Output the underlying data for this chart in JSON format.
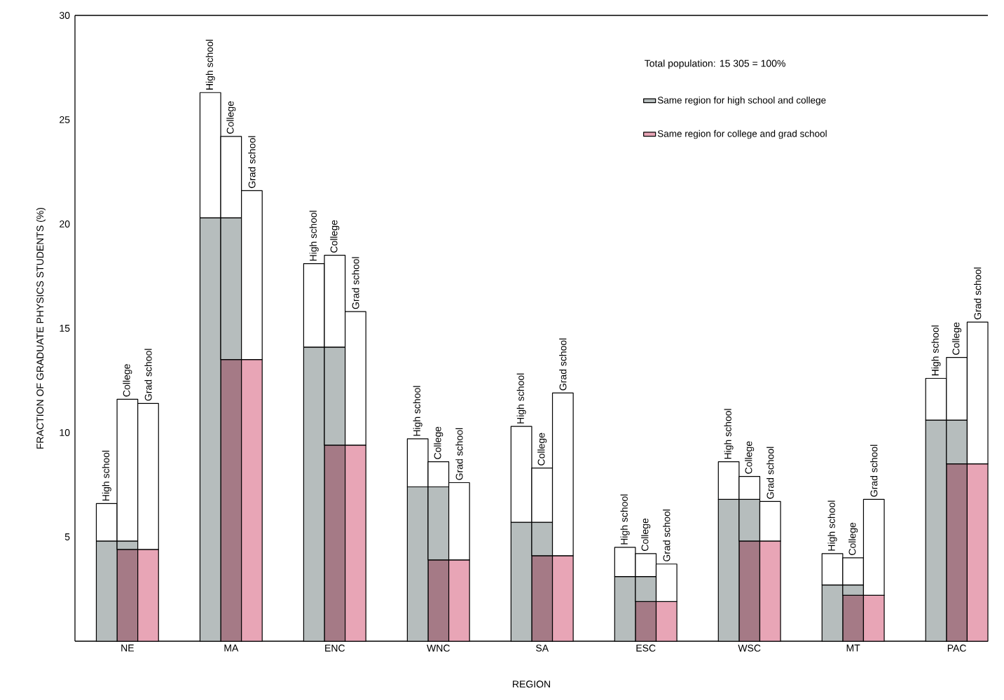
{
  "chart_data": {
    "type": "bar",
    "stacked": true,
    "categories": [
      null,
      "NE",
      null,
      null,
      "MA",
      null,
      null,
      "ENC",
      null,
      null,
      "WNC",
      null,
      null,
      "SA",
      null,
      null,
      "ESC",
      null,
      null,
      "WSC",
      null,
      null,
      "MT",
      null,
      null,
      "PAC",
      null
    ],
    "series": [
      {
        "color": "#a57a86",
        "values": [
          null,
          4.4,
          null,
          null,
          13.5,
          null,
          null,
          9.4,
          null,
          null,
          3.9,
          null,
          null,
          4.1,
          null,
          null,
          1.9,
          null,
          null,
          4.8,
          null,
          null,
          2.2,
          null,
          null,
          8.5,
          null
        ]
      },
      {
        "name": "Same region for high school and college",
        "color": "#b6bdbd",
        "values": [
          4.8,
          0.4,
          null,
          20.3,
          6.8,
          null,
          14.1,
          4.7,
          null,
          7.4,
          3.5,
          null,
          5.7,
          1.6,
          null,
          3.1,
          1.2,
          null,
          6.8,
          2.0,
          null,
          2.7,
          0.5,
          null,
          10.6,
          2.1,
          null
        ]
      },
      {
        "name": "Same region for college and grad school",
        "color": "#e8a5b6",
        "values": [
          null,
          null,
          4.4,
          null,
          null,
          13.5,
          null,
          null,
          9.4,
          null,
          null,
          3.9,
          null,
          null,
          4.1,
          null,
          null,
          1.9,
          null,
          null,
          4.8,
          null,
          null,
          2.2,
          null,
          null,
          8.5
        ]
      },
      {
        "color": "#ffffff",
        "values": [
          1.8,
          6.8,
          7.0,
          6.0,
          3.9,
          8.1,
          4.0,
          4.4,
          6.4,
          2.3,
          1.2,
          3.7,
          4.6,
          2.6,
          7.8,
          1.4,
          1.1,
          1.8,
          1.8,
          1.1,
          1.9,
          1.5,
          1.3,
          4.6,
          2.0,
          3.0,
          6.8
        ]
      }
    ],
    "ylim": [
      0,
      30
    ],
    "yticks": [
      5,
      10,
      15,
      20,
      25,
      30
    ],
    "xlabel": "REGION",
    "ylabel": "FRACTION OF GRADUATE PHYSICS STUDENTS (%)",
    "annotations": [
      "High school",
      "College",
      "Grad school",
      "High school",
      "College",
      "Grad school",
      "High school",
      "College",
      "Grad school",
      "High school",
      "College",
      "Grad school",
      "High school",
      "College",
      "Grad school",
      "High school",
      "College",
      "Grad school",
      "High school",
      "College",
      "Grad school",
      "High school",
      "College",
      "Grad school",
      "High school",
      "College",
      "Grad school",
      "Total population: 15 305 = 100%"
    ],
    "legend": "top right"
  }
}
